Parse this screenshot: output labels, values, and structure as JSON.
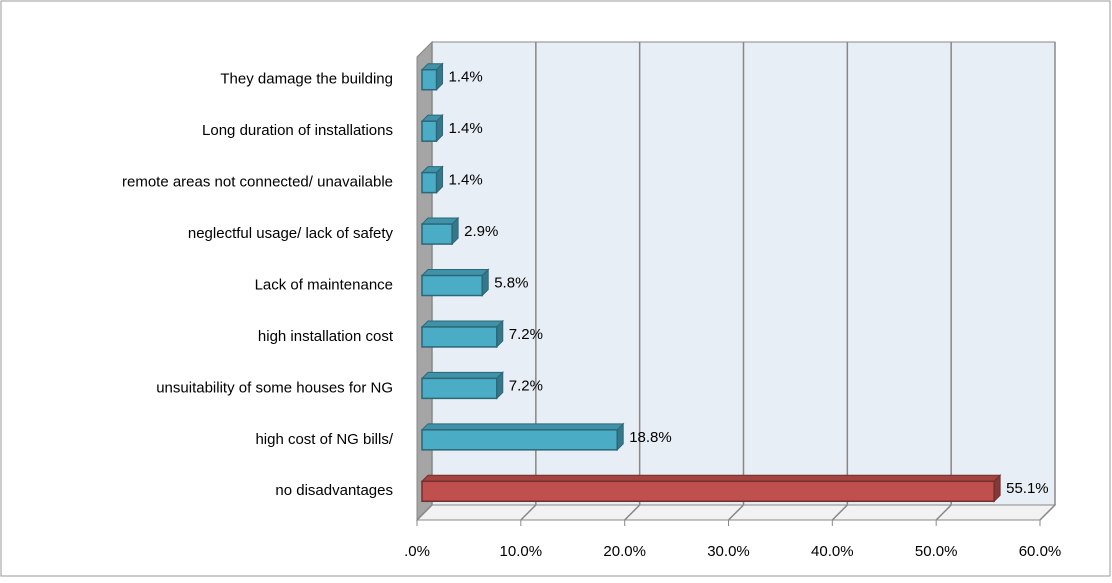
{
  "chart_data": {
    "type": "bar3d_horizontal",
    "categories": [
      "They damage the building",
      "Long duration of installations",
      "remote areas not connected/ unavailable",
      "neglectful usage/ lack of safety",
      "Lack of maintenance",
      "high installation cost",
      "unsuitability of some houses for NG",
      "high cost of NG bills/",
      "no disadvantages"
    ],
    "values": [
      1.4,
      1.4,
      1.4,
      2.9,
      5.8,
      7.2,
      7.2,
      18.8,
      55.1
    ],
    "value_labels": [
      "1.4%",
      "1.4%",
      "1.4%",
      "2.9%",
      "5.8%",
      "7.2%",
      "7.2%",
      "18.8%",
      "55.1%"
    ],
    "colors": [
      "#4bacc6",
      "#4bacc6",
      "#4bacc6",
      "#4bacc6",
      "#4bacc6",
      "#4bacc6",
      "#4bacc6",
      "#4bacc6",
      "#c0504d"
    ],
    "xlim": [
      0,
      60
    ],
    "xticks": [
      {
        "value": 0,
        "label": ".0%"
      },
      {
        "value": 10,
        "label": "10.0%"
      },
      {
        "value": 20,
        "label": "20.0%"
      },
      {
        "value": 30,
        "label": "30.0%"
      },
      {
        "value": 40,
        "label": "40.0%"
      },
      {
        "value": 50,
        "label": "50.0%"
      },
      {
        "value": 60,
        "label": "60.0%"
      }
    ],
    "grid": true
  }
}
